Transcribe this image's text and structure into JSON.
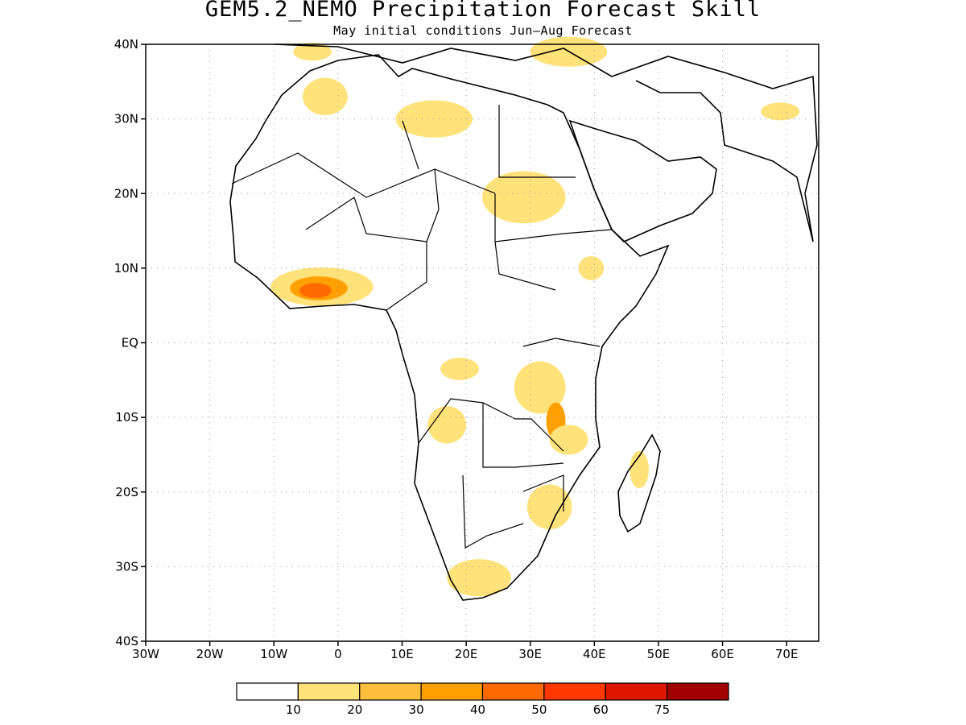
{
  "title": "GEM5.2_NEMO Precipitation Forecast Skill",
  "subtitle": "May initial conditions  Jun–Aug Forecast",
  "map": {
    "lon_range": [
      -30,
      75
    ],
    "lat_range": [
      -40,
      40
    ],
    "lat_ticks": [
      {
        "value": 40,
        "label": "40N"
      },
      {
        "value": 30,
        "label": "30N"
      },
      {
        "value": 20,
        "label": "20N"
      },
      {
        "value": 10,
        "label": "10N"
      },
      {
        "value": 0,
        "label": "EQ"
      },
      {
        "value": -10,
        "label": "10S"
      },
      {
        "value": -20,
        "label": "20S"
      },
      {
        "value": -30,
        "label": "30S"
      },
      {
        "value": -40,
        "label": "40S"
      }
    ],
    "lon_ticks": [
      {
        "value": -30,
        "label": "30W"
      },
      {
        "value": -20,
        "label": "20W"
      },
      {
        "value": -10,
        "label": "10W"
      },
      {
        "value": 0,
        "label": "0"
      },
      {
        "value": 10,
        "label": "10E"
      },
      {
        "value": 20,
        "label": "20E"
      },
      {
        "value": 30,
        "label": "30E"
      },
      {
        "value": 40,
        "label": "40E"
      },
      {
        "value": 50,
        "label": "50E"
      },
      {
        "value": 60,
        "label": "60E"
      },
      {
        "value": 70,
        "label": "70E"
      }
    ],
    "grid": true,
    "skill_regions": [
      {
        "name": "west-africa-coast",
        "lon": -2.5,
        "lat": 7.5,
        "rx": 8,
        "ry": 2.6,
        "level": 1
      },
      {
        "name": "west-africa-coast-core",
        "lon": -3,
        "lat": 7.3,
        "rx": 4.5,
        "ry": 1.6,
        "level": 3
      },
      {
        "name": "west-africa-coast-peak",
        "lon": -3.5,
        "lat": 7.0,
        "rx": 2.5,
        "ry": 1.0,
        "level": 4
      },
      {
        "name": "sahara-north",
        "lon": 15,
        "lat": 30,
        "rx": 6,
        "ry": 2.5,
        "level": 1
      },
      {
        "name": "morocco",
        "lon": -2,
        "lat": 33,
        "rx": 3.5,
        "ry": 2.5,
        "level": 1
      },
      {
        "name": "iberia",
        "lon": -4,
        "lat": 39,
        "rx": 3,
        "ry": 1.2,
        "level": 1
      },
      {
        "name": "turkey",
        "lon": 36,
        "lat": 39,
        "rx": 6,
        "ry": 2,
        "level": 1
      },
      {
        "name": "sudan",
        "lon": 29,
        "lat": 19.5,
        "rx": 6.5,
        "ry": 3.5,
        "level": 1
      },
      {
        "name": "ethiopia",
        "lon": 39.5,
        "lat": 10,
        "rx": 2,
        "ry": 1.6,
        "level": 1
      },
      {
        "name": "east-africa-lakes",
        "lon": 31.5,
        "lat": -6,
        "rx": 4,
        "ry": 3.5,
        "level": 1
      },
      {
        "name": "malawi",
        "lon": 34,
        "lat": -10.5,
        "rx": 1.5,
        "ry": 2.5,
        "level": 3
      },
      {
        "name": "tanzania-south",
        "lon": 36,
        "lat": -13,
        "rx": 3,
        "ry": 2,
        "level": 1
      },
      {
        "name": "angola",
        "lon": 17,
        "lat": -11,
        "rx": 3,
        "ry": 2.5,
        "level": 1
      },
      {
        "name": "congo",
        "lon": 19,
        "lat": -3.5,
        "rx": 3,
        "ry": 1.5,
        "level": 1
      },
      {
        "name": "mozambique",
        "lon": 33,
        "lat": -22,
        "rx": 3.5,
        "ry": 3,
        "level": 1
      },
      {
        "name": "south-africa",
        "lon": 22,
        "lat": -31.5,
        "rx": 5,
        "ry": 2.5,
        "level": 1
      },
      {
        "name": "madagascar",
        "lon": 47,
        "lat": -17,
        "rx": 1.5,
        "ry": 2.5,
        "level": 1
      },
      {
        "name": "pakistan",
        "lon": 69,
        "lat": 31,
        "rx": 3,
        "ry": 1.2,
        "level": 1
      }
    ]
  },
  "colorbar": {
    "labels": [
      "10",
      "20",
      "30",
      "40",
      "50",
      "60",
      "75"
    ],
    "colors": [
      "#ffffff",
      "#ffe27a",
      "#ffbe3c",
      "#ff9f00",
      "#ff6a00",
      "#ff3800",
      "#de1700",
      "#a00000"
    ]
  }
}
